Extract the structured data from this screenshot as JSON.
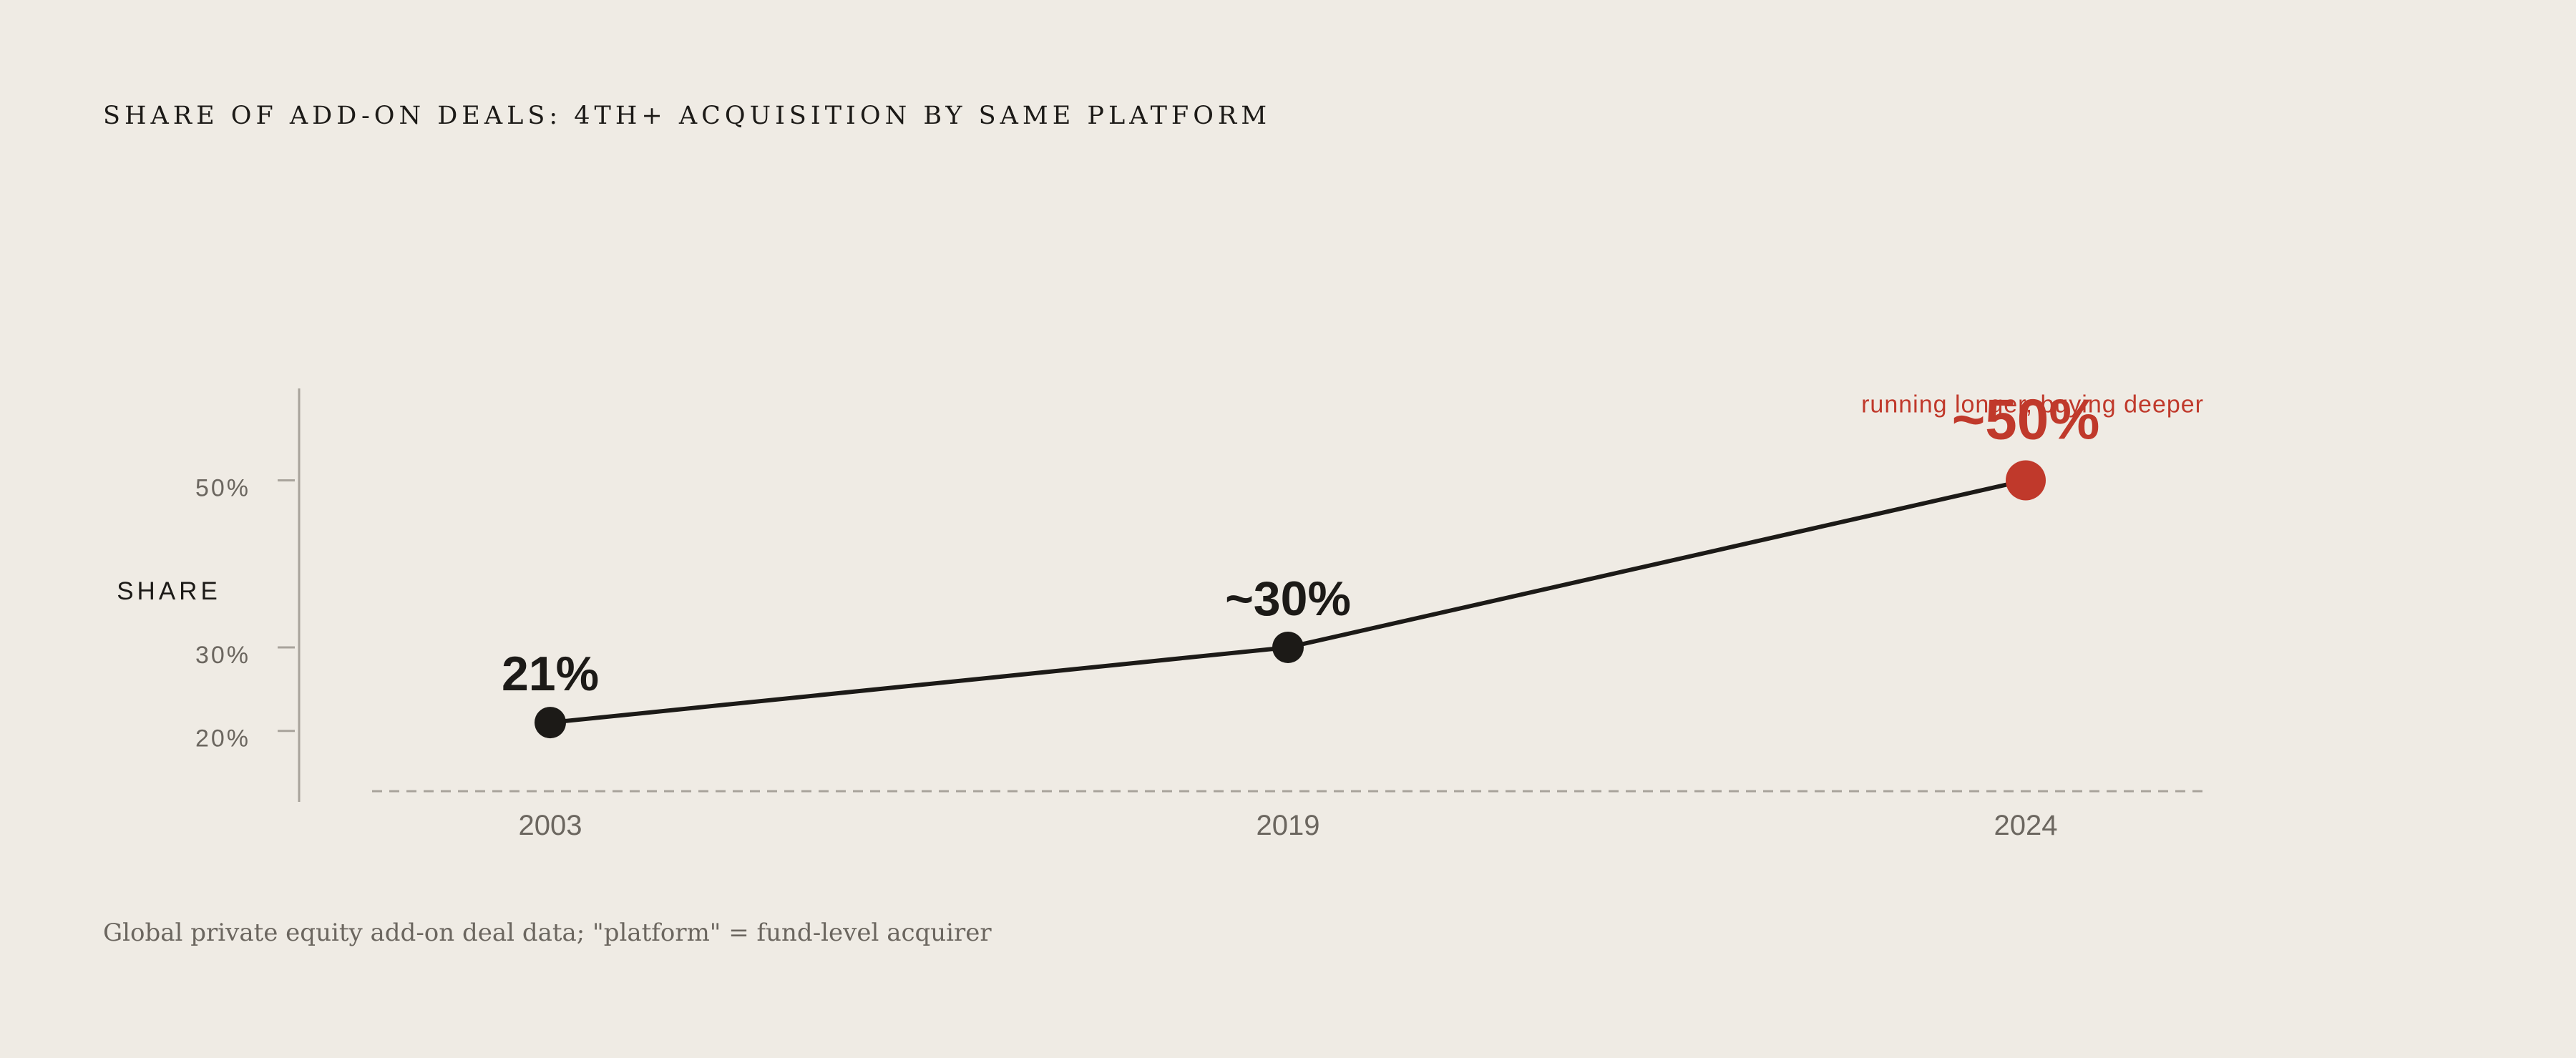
{
  "chart_data": {
    "type": "line",
    "title": "SHARE OF ADD-ON DEALS: 4TH+ ACQUISITION BY SAME PLATFORM",
    "ylabel": "SHARE",
    "xlabel": "",
    "categories": [
      "2003",
      "2019",
      "2024"
    ],
    "series": [
      {
        "values": [
          21,
          30,
          50
        ],
        "data_labels": [
          "21%",
          "~30%",
          "~50%"
        ]
      }
    ],
    "y_ticks": [
      {
        "value": 20,
        "label": "20%"
      },
      {
        "value": 30,
        "label": "30%"
      },
      {
        "value": 50,
        "label": "50%"
      }
    ],
    "ylim": [
      11.5,
      61
    ],
    "annotation": "running longer, buying deeper",
    "highlight_index": 2,
    "grid": false
  },
  "footer": {
    "source": "Global private equity add-on deal data; \"platform\" = fund-level acquirer"
  },
  "colors": {
    "background": "#efebe4",
    "line": "#1c1a17",
    "highlight": "#c0392b",
    "axis": "#a8a39b",
    "tick_text": "#6b665f"
  }
}
